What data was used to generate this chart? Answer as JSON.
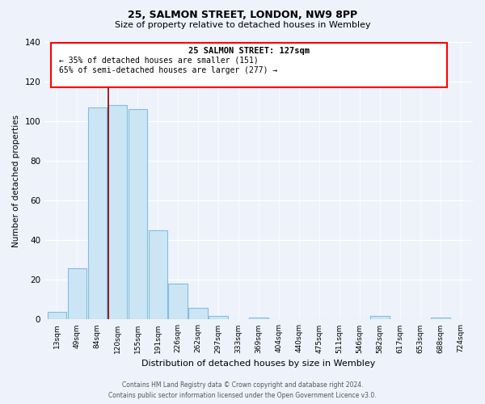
{
  "title": "25, SALMON STREET, LONDON, NW9 8PP",
  "subtitle": "Size of property relative to detached houses in Wembley",
  "xlabel": "Distribution of detached houses by size in Wembley",
  "ylabel": "Number of detached properties",
  "bar_labels": [
    "13sqm",
    "49sqm",
    "84sqm",
    "120sqm",
    "155sqm",
    "191sqm",
    "226sqm",
    "262sqm",
    "297sqm",
    "333sqm",
    "369sqm",
    "404sqm",
    "440sqm",
    "475sqm",
    "511sqm",
    "546sqm",
    "582sqm",
    "617sqm",
    "653sqm",
    "688sqm",
    "724sqm"
  ],
  "bar_values": [
    4,
    26,
    107,
    108,
    106,
    45,
    18,
    6,
    2,
    0,
    1,
    0,
    0,
    0,
    0,
    0,
    2,
    0,
    0,
    1,
    0
  ],
  "bar_color": "#cce5f5",
  "bar_edge_color": "#7fbfdf",
  "ylim": [
    0,
    140
  ],
  "yticks": [
    0,
    20,
    40,
    60,
    80,
    100,
    120,
    140
  ],
  "property_bar_idx": 3,
  "annotation_line1": "25 SALMON STREET: 127sqm",
  "annotation_line2": "← 35% of detached houses are smaller (151)",
  "annotation_line3": "65% of semi-detached houses are larger (277) →",
  "footer_line1": "Contains HM Land Registry data © Crown copyright and database right 2024.",
  "footer_line2": "Contains public sector information licensed under the Open Government Licence v3.0.",
  "background_color": "#eef2fb",
  "grid_color": "#ffffff",
  "title_fontsize": 9,
  "subtitle_fontsize": 8,
  "ylabel_fontsize": 7.5,
  "xlabel_fontsize": 8,
  "tick_fontsize": 6.5,
  "ytick_fontsize": 7.5,
  "annotation_fontsize_title": 7.5,
  "annotation_fontsize_body": 7,
  "footer_fontsize": 5.5
}
